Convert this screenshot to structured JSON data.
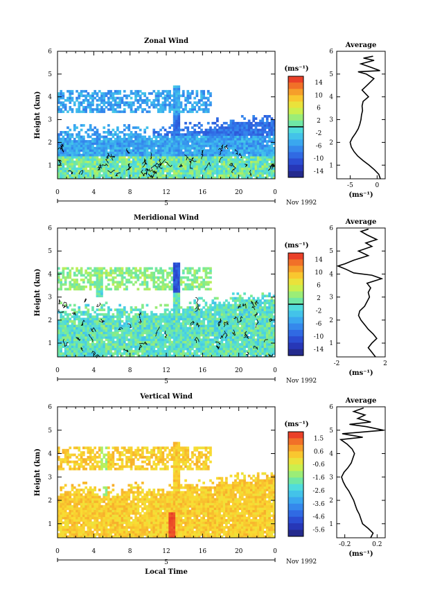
{
  "figure": {
    "xlabel": "Local Time",
    "date_label": "Nov 1992",
    "day_label": "5",
    "unit": "(ms⁻¹)",
    "profile_title": "Average",
    "height_label": "Height (km)"
  },
  "chart_data": [
    {
      "type": "heatmap",
      "title": "Zonal Wind",
      "xlabel": "",
      "ylabel": "Height (km)",
      "x_ticks": [
        "0",
        "4",
        "8",
        "12",
        "16",
        "20",
        "0"
      ],
      "y_ticks": [
        "1",
        "2",
        "3",
        "4",
        "5",
        "6"
      ],
      "xlim": [
        0,
        24
      ],
      "ylim": [
        0.4,
        6
      ],
      "colorbar": {
        "unit": "(ms⁻¹)",
        "range": [
          -16,
          16
        ],
        "ticks": [
          "14",
          "10",
          "6",
          "2",
          "-2",
          "-6",
          "-10",
          "-14"
        ],
        "zero_line": true
      },
      "profile": {
        "title": "Average",
        "x_ticks": [
          "-5",
          "0"
        ],
        "xlabel": "(ms⁻¹)",
        "xlim": [
          -7.5,
          1.5
        ],
        "y_ticks": [
          "1",
          "2",
          "3",
          "4",
          "5",
          "6"
        ],
        "points": [
          [
            0.6,
            0.4
          ],
          [
            0.3,
            0.6
          ],
          [
            -0.5,
            0.8
          ],
          [
            -1.5,
            1.0
          ],
          [
            -2.6,
            1.2
          ],
          [
            -3.6,
            1.4
          ],
          [
            -4.3,
            1.6
          ],
          [
            -4.8,
            1.8
          ],
          [
            -5.0,
            2.0
          ],
          [
            -4.6,
            2.2
          ],
          [
            -4.0,
            2.4
          ],
          [
            -3.5,
            2.6
          ],
          [
            -3.2,
            2.8
          ],
          [
            -3.0,
            3.0
          ],
          [
            -2.9,
            3.2
          ],
          [
            -2.7,
            3.4
          ],
          [
            -2.8,
            3.6
          ],
          [
            -2.6,
            3.8
          ],
          [
            -1.6,
            4.0
          ],
          [
            -2.8,
            4.3
          ],
          [
            -1.9,
            4.5
          ],
          [
            -0.6,
            4.8
          ],
          [
            -2.0,
            5.0
          ],
          [
            -3.5,
            5.1
          ],
          [
            0.5,
            5.15
          ],
          [
            -1.2,
            5.3
          ],
          [
            -3.0,
            5.45
          ],
          [
            -0.6,
            5.6
          ],
          [
            -2.5,
            5.7
          ],
          [
            -0.8,
            5.78
          ]
        ]
      }
    },
    {
      "type": "heatmap",
      "title": "Meridional Wind",
      "xlabel": "",
      "ylabel": "Height (km)",
      "x_ticks": [
        "0",
        "4",
        "8",
        "12",
        "16",
        "20",
        "0"
      ],
      "y_ticks": [
        "1",
        "2",
        "3",
        "4",
        "5",
        "6"
      ],
      "xlim": [
        0,
        24
      ],
      "ylim": [
        0.4,
        6
      ],
      "colorbar": {
        "unit": "(ms⁻¹)",
        "range": [
          -16,
          16
        ],
        "ticks": [
          "14",
          "10",
          "6",
          "2",
          "-2",
          "-6",
          "-10",
          "-14"
        ],
        "zero_line": true
      },
      "profile": {
        "title": "Average",
        "x_ticks": [
          "-2",
          "2"
        ],
        "xlabel": "(ms⁻¹)",
        "xlim": [
          -2,
          2
        ],
        "y_ticks": [
          "1",
          "2",
          "3",
          "4",
          "5",
          "6"
        ],
        "points": [
          [
            1.2,
            0.4
          ],
          [
            0.9,
            0.6
          ],
          [
            0.6,
            0.8
          ],
          [
            0.9,
            1.0
          ],
          [
            1.3,
            1.2
          ],
          [
            1.0,
            1.4
          ],
          [
            0.6,
            1.6
          ],
          [
            0.3,
            1.8
          ],
          [
            0.0,
            2.0
          ],
          [
            -0.2,
            2.2
          ],
          [
            -0.1,
            2.4
          ],
          [
            0.3,
            2.6
          ],
          [
            0.5,
            2.8
          ],
          [
            0.7,
            3.0
          ],
          [
            0.6,
            3.2
          ],
          [
            0.8,
            3.4
          ],
          [
            0.5,
            3.6
          ],
          [
            1.7,
            3.8
          ],
          [
            0.9,
            3.95
          ],
          [
            -0.6,
            4.05
          ],
          [
            -1.2,
            4.2
          ],
          [
            -1.9,
            4.35
          ],
          [
            -1.3,
            4.45
          ],
          [
            -0.6,
            4.6
          ],
          [
            0.6,
            4.8
          ],
          [
            -0.2,
            5.0
          ],
          [
            0.9,
            5.2
          ],
          [
            0.4,
            5.35
          ],
          [
            1.3,
            5.5
          ],
          [
            0.5,
            5.7
          ],
          [
            0.0,
            5.85
          ],
          [
            0.6,
            5.95
          ]
        ]
      }
    },
    {
      "type": "heatmap",
      "title": "Vertical Wind",
      "xlabel": "Local Time",
      "ylabel": "Height (km)",
      "x_ticks": [
        "0",
        "4",
        "8",
        "12",
        "16",
        "20",
        "0"
      ],
      "y_ticks": [
        "1",
        "2",
        "3",
        "4",
        "5",
        "6"
      ],
      "xlim": [
        0,
        24
      ],
      "ylim": [
        0.4,
        6
      ],
      "colorbar": {
        "unit": "(ms⁻¹)",
        "range": [
          -6.0,
          2.0
        ],
        "ticks": [
          "1.5",
          "0.6",
          "-0.6",
          "-1.6",
          "-2.6",
          "-3.6",
          "-4.6",
          "-5.6"
        ],
        "zero_line": false
      },
      "profile": {
        "title": "Average",
        "x_ticks": [
          "-0.2",
          "0.2"
        ],
        "xlabel": "(ms⁻¹)",
        "xlim": [
          -0.3,
          0.3
        ],
        "y_ticks": [
          "1",
          "2",
          "3",
          "4",
          "5",
          "6"
        ],
        "points": [
          [
            0.12,
            0.4
          ],
          [
            0.15,
            0.6
          ],
          [
            0.09,
            0.8
          ],
          [
            0.02,
            1.0
          ],
          [
            0.0,
            1.2
          ],
          [
            -0.02,
            1.4
          ],
          [
            -0.05,
            1.6
          ],
          [
            -0.07,
            1.8
          ],
          [
            -0.09,
            2.0
          ],
          [
            -0.12,
            2.2
          ],
          [
            -0.15,
            2.4
          ],
          [
            -0.19,
            2.6
          ],
          [
            -0.22,
            2.8
          ],
          [
            -0.24,
            3.0
          ],
          [
            -0.21,
            3.2
          ],
          [
            -0.16,
            3.4
          ],
          [
            -0.12,
            3.6
          ],
          [
            -0.1,
            3.8
          ],
          [
            -0.08,
            4.0
          ],
          [
            -0.11,
            4.2
          ],
          [
            -0.17,
            4.4
          ],
          [
            -0.25,
            4.6
          ],
          [
            0.02,
            4.7
          ],
          [
            -0.23,
            4.85
          ],
          [
            0.28,
            5.0
          ],
          [
            0.07,
            5.15
          ],
          [
            -0.14,
            5.25
          ],
          [
            0.12,
            5.35
          ],
          [
            -0.04,
            5.5
          ],
          [
            0.05,
            5.65
          ],
          [
            -0.09,
            5.8
          ],
          [
            0.03,
            5.95
          ]
        ]
      }
    }
  ]
}
